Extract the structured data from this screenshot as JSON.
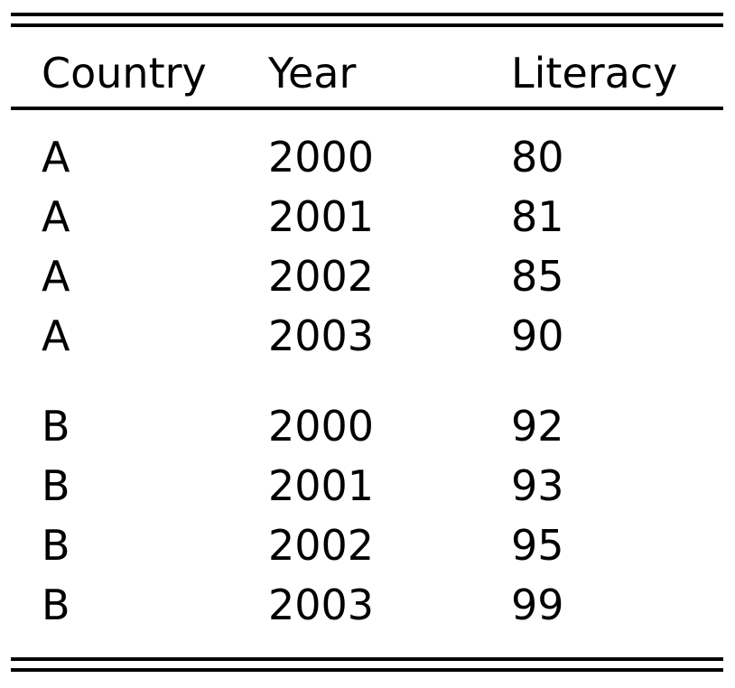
{
  "table": {
    "headers": [
      "Country",
      "Year",
      "Literacy"
    ],
    "groups": [
      {
        "rows": [
          [
            "A",
            "2000",
            "80"
          ],
          [
            "A",
            "2001",
            "81"
          ],
          [
            "A",
            "2002",
            "85"
          ],
          [
            "A",
            "2003",
            "90"
          ]
        ]
      },
      {
        "rows": [
          [
            "B",
            "2000",
            "92"
          ],
          [
            "B",
            "2001",
            "93"
          ],
          [
            "B",
            "2002",
            "95"
          ],
          [
            "B",
            "2003",
            "99"
          ]
        ]
      }
    ]
  }
}
